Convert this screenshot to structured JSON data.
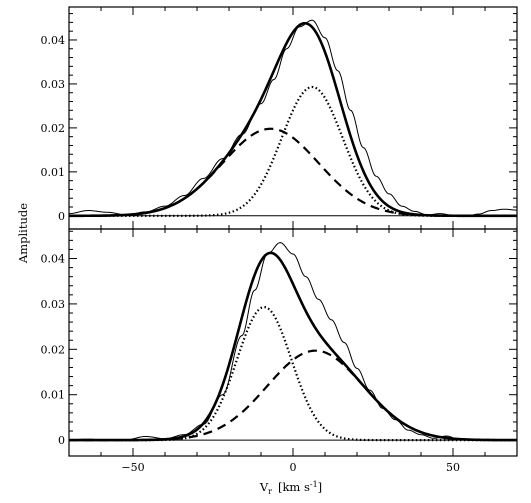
{
  "chart_data": {
    "type": "line",
    "ylabel": "Amplitude",
    "xlabel_main": "V",
    "xlabel_sub": "r",
    "xlabel_units": "[km s",
    "xlabel_exp": "-1",
    "xlabel_close": "]",
    "xlim": [
      -70,
      70
    ],
    "xticks": [
      -50,
      0,
      50
    ],
    "xtick_labels": [
      "−50",
      "0",
      "50"
    ],
    "panels": [
      {
        "name": "top",
        "ylim": [
          -0.003,
          0.0475
        ],
        "yticks": [
          0,
          0.01,
          0.02,
          0.03,
          0.04
        ],
        "ytick_labels": [
          "0",
          "0.01",
          "0.02",
          "0.03",
          "0.04"
        ],
        "series": [
          {
            "style": "dashed",
            "shape": "gaussian",
            "amplitude": 0.0198,
            "center": -7,
            "sigma": 15
          },
          {
            "style": "dotted",
            "shape": "gaussian",
            "amplitude": 0.0293,
            "center": 6,
            "sigma": 9.5
          },
          {
            "style": "solid-thick",
            "shape": "sum",
            "label": "fit"
          },
          {
            "style": "solid-thin",
            "shape": "observed",
            "x": [
              -70,
              -64,
              -58,
              -52,
              -46,
              -40,
              -34,
              -28,
              -22,
              -16,
              -10,
              -6,
              -2,
              2,
              6,
              10,
              14,
              18,
              22,
              26,
              30,
              34,
              38,
              42,
              46,
              50,
              54,
              58,
              62,
              66,
              70
            ],
            "y": [
              0.0005,
              0.0012,
              0.0008,
              0.0002,
              0.0009,
              0.0022,
              0.0046,
              0.0085,
              0.013,
              0.0185,
              0.0255,
              0.031,
              0.038,
              0.043,
              0.0445,
              0.0405,
              0.033,
              0.024,
              0.0155,
              0.009,
              0.005,
              0.0022,
              0.001,
              0.0002,
              0.0005,
              0.0001,
              -0.0001,
              0.0004,
              0.0012,
              0.0015,
              0.0013
            ]
          }
        ]
      },
      {
        "name": "bottom",
        "ylim": [
          -0.0035,
          0.0465
        ],
        "yticks": [
          0,
          0.01,
          0.02,
          0.03,
          0.04
        ],
        "ytick_labels": [
          "0",
          "0.01",
          "0.02",
          "0.03",
          "0.04"
        ],
        "series": [
          {
            "style": "dashed",
            "shape": "gaussian",
            "amplitude": 0.0197,
            "center": 7,
            "sigma": 15
          },
          {
            "style": "dotted",
            "shape": "gaussian",
            "amplitude": 0.0293,
            "center": -9,
            "sigma": 8.5
          },
          {
            "style": "solid-thick",
            "shape": "sum",
            "label": "fit"
          },
          {
            "style": "solid-thin",
            "shape": "observed",
            "x": [
              -70,
              -64,
              -58,
              -52,
              -46,
              -40,
              -34,
              -28,
              -22,
              -16,
              -12,
              -8,
              -4,
              0,
              4,
              8,
              12,
              16,
              20,
              24,
              28,
              32,
              36,
              40,
              44,
              48,
              52,
              56,
              60,
              64,
              70
            ],
            "y": [
              0.0001,
              0.0002,
              0.0,
              0.0001,
              0.0008,
              0.0003,
              0.0012,
              0.0035,
              0.01,
              0.023,
              0.033,
              0.041,
              0.0435,
              0.041,
              0.036,
              0.031,
              0.0265,
              0.0215,
              0.0158,
              0.011,
              0.007,
              0.0045,
              0.0022,
              0.0012,
              0.0004,
              0.0009,
              0.0001,
              0.0002,
              -0.0001,
              0.0001,
              0.0
            ]
          }
        ]
      }
    ]
  }
}
